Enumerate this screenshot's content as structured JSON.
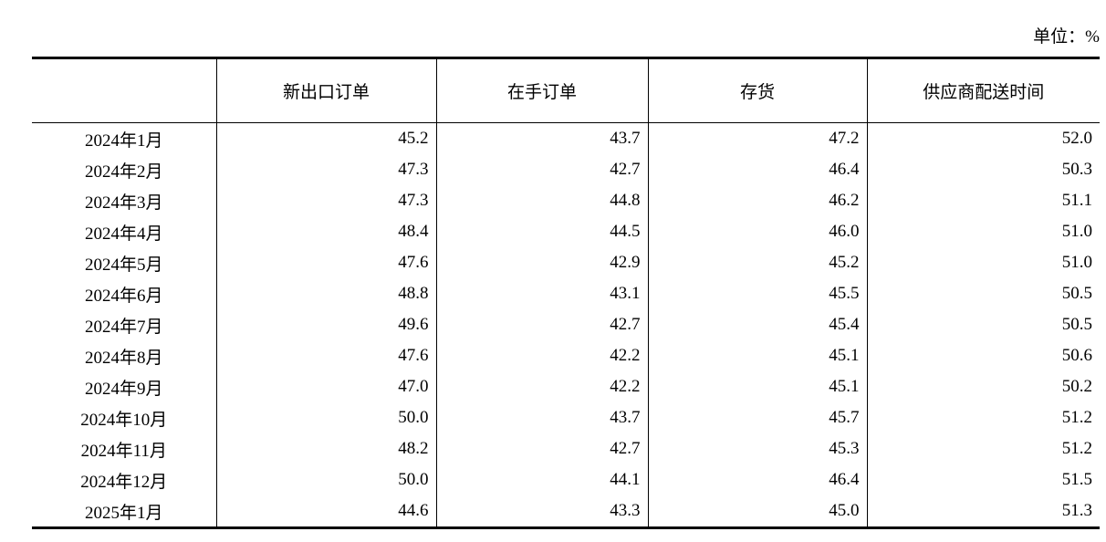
{
  "page": {
    "unit_label": "单位：%"
  },
  "table": {
    "columns": [
      "",
      "新出口订单",
      "在手订单",
      "存货",
      "供应商配送时间"
    ],
    "rows": [
      {
        "period": "2024年1月",
        "values": [
          "45.2",
          "43.7",
          "47.2",
          "52.0"
        ]
      },
      {
        "period": "2024年2月",
        "values": [
          "47.3",
          "42.7",
          "46.4",
          "50.3"
        ]
      },
      {
        "period": "2024年3月",
        "values": [
          "47.3",
          "44.8",
          "46.2",
          "51.1"
        ]
      },
      {
        "period": "2024年4月",
        "values": [
          "48.4",
          "44.5",
          "46.0",
          "51.0"
        ]
      },
      {
        "period": "2024年5月",
        "values": [
          "47.6",
          "42.9",
          "45.2",
          "51.0"
        ]
      },
      {
        "period": "2024年6月",
        "values": [
          "48.8",
          "43.1",
          "45.5",
          "50.5"
        ]
      },
      {
        "period": "2024年7月",
        "values": [
          "49.6",
          "42.7",
          "45.4",
          "50.5"
        ]
      },
      {
        "period": "2024年8月",
        "values": [
          "47.6",
          "42.2",
          "45.1",
          "50.6"
        ]
      },
      {
        "period": "2024年9月",
        "values": [
          "47.0",
          "42.2",
          "45.1",
          "50.2"
        ]
      },
      {
        "period": "2024年10月",
        "values": [
          "50.0",
          "43.7",
          "45.7",
          "51.2"
        ]
      },
      {
        "period": "2024年11月",
        "values": [
          "48.2",
          "42.7",
          "45.3",
          "51.2"
        ]
      },
      {
        "period": "2024年12月",
        "values": [
          "50.0",
          "44.1",
          "46.4",
          "51.5"
        ]
      },
      {
        "period": "2025年1月",
        "values": [
          "44.6",
          "43.3",
          "45.0",
          "51.3"
        ]
      }
    ]
  }
}
